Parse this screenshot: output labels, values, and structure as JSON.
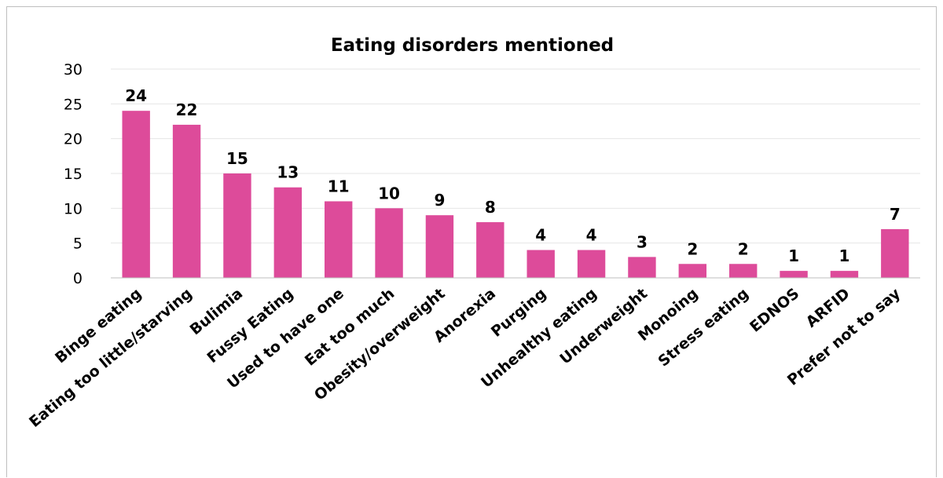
{
  "chart_data": {
    "type": "bar",
    "title": "Eating disorders mentioned",
    "xlabel": "",
    "ylabel": "",
    "categories": [
      "Binge eating",
      "Eating too little/starving",
      "Bulimia",
      "Fussy Eating",
      "Used to have one",
      "Eat too much",
      "Obesity/overweight",
      "Anorexia",
      "Purging",
      "Unhealthy eating",
      "Underweight",
      "Monoing",
      "Stress eating",
      "EDNOS",
      "ARFID",
      "Prefer not to say"
    ],
    "values": [
      24,
      22,
      15,
      13,
      11,
      10,
      9,
      8,
      4,
      4,
      3,
      2,
      2,
      1,
      1,
      7
    ],
    "ylim": [
      0,
      30
    ],
    "yticks": [
      0,
      5,
      10,
      15,
      20,
      25,
      30
    ],
    "grid": true,
    "legend": "none",
    "bar_color": "#dd4b9a"
  }
}
